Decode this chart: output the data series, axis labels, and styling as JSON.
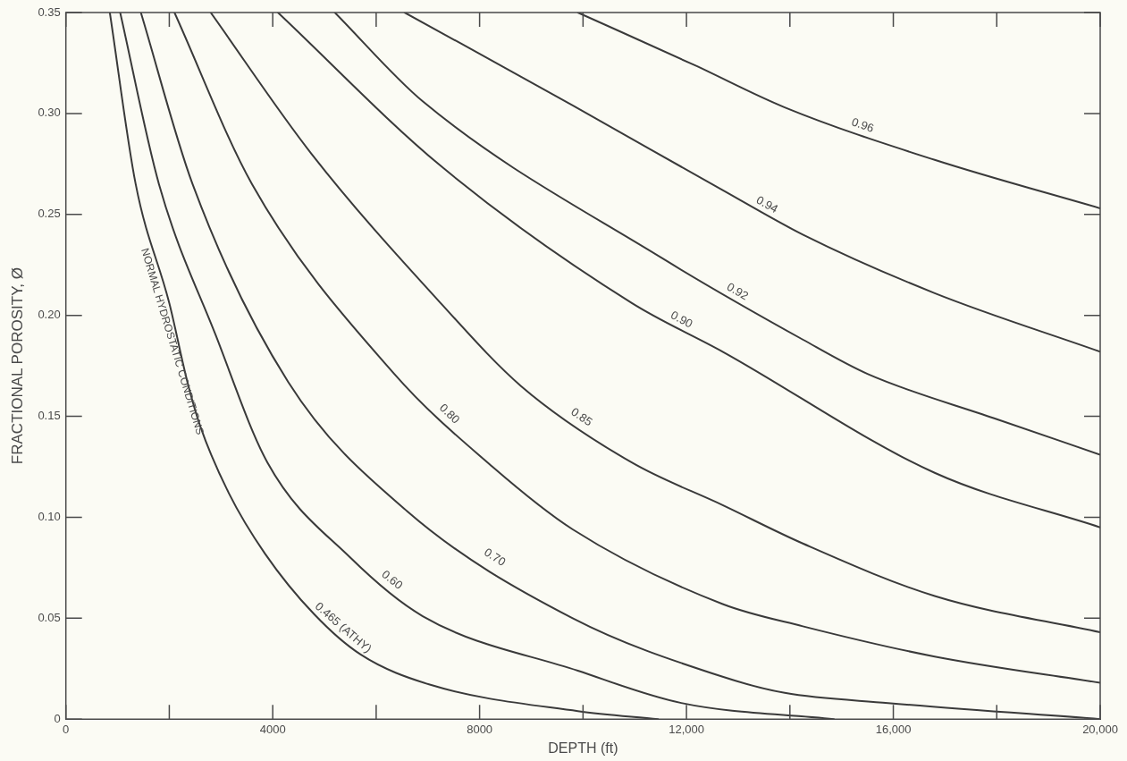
{
  "chart_data": {
    "type": "line",
    "xlabel": "DEPTH (ft)",
    "ylabel": "FRACTIONAL POROSITY, Ø",
    "xlim": [
      0,
      20000
    ],
    "ylim": [
      0,
      0.35
    ],
    "xticks": [
      0,
      {
        "value": 2000,
        "label": null
      },
      4000,
      {
        "value": 6000,
        "label": null
      },
      8000,
      {
        "value": 10000,
        "label": null
      },
      {
        "value": 12000,
        "label": "12,000"
      },
      {
        "value": 14000,
        "label": null
      },
      {
        "value": 16000,
        "label": "16,000"
      },
      {
        "value": 18000,
        "label": null
      },
      {
        "value": 20000,
        "label": "20,000"
      }
    ],
    "yticks": [
      0,
      {
        "value": 0.05,
        "label": "0.05"
      },
      {
        "value": 0.1,
        "label": "0.10"
      },
      {
        "value": 0.15,
        "label": "0.15"
      },
      {
        "value": 0.2,
        "label": "0.20"
      },
      {
        "value": 0.25,
        "label": "0.25"
      },
      {
        "value": 0.3,
        "label": "0.30"
      },
      {
        "value": 0.35,
        "label": "0.35"
      }
    ],
    "grid": false,
    "legend": false,
    "marker": "none",
    "line_style": "solid",
    "annotations": [
      "NORMAL HYDROSTATIC CONDITIONS"
    ],
    "series": [
      {
        "name": "0.465 (ATHY)",
        "color": "#3a3a3a",
        "x": [
          850,
          1350,
          2000,
          2350,
          2600,
          3150,
          3850,
          4800,
          5700,
          7050,
          9900,
          11450
        ],
        "values": [
          0.35,
          0.265,
          0.206,
          0.167,
          0.145,
          0.112,
          0.082,
          0.052,
          0.032,
          0.017,
          0.004,
          0
        ]
      },
      {
        "name": "0.60",
        "color": "#3a3a3a",
        "x": [
          1050,
          1800,
          2900,
          3900,
          5500,
          6900,
          9900,
          11900,
          14850
        ],
        "values": [
          0.35,
          0.265,
          0.19,
          0.127,
          0.08,
          0.051,
          0.024,
          0.008,
          0
        ]
      },
      {
        "name": "0.70",
        "color": "#3a3a3a",
        "x": [
          1450,
          2450,
          4300,
          6600,
          9800,
          12700,
          13900,
          15900,
          20000
        ],
        "values": [
          0.35,
          0.265,
          0.167,
          0.103,
          0.05,
          0.021,
          0.013,
          0.008,
          0
        ]
      },
      {
        "name": "0.80",
        "color": "#3a3a3a",
        "x": [
          2100,
          3600,
          6350,
          8250,
          9800,
          12700,
          14250,
          16800,
          20000
        ],
        "values": [
          0.35,
          0.265,
          0.171,
          0.125,
          0.094,
          0.057,
          0.046,
          0.031,
          0.018
        ]
      },
      {
        "name": "0.85",
        "color": "#3a3a3a",
        "x": [
          2800,
          4750,
          7250,
          8800,
          10950,
          12700,
          14250,
          16800,
          20000
        ],
        "values": [
          0.35,
          0.28,
          0.206,
          0.165,
          0.127,
          0.106,
          0.087,
          0.061,
          0.043
        ]
      },
      {
        "name": "0.90",
        "color": "#3a3a3a",
        "x": [
          4100,
          7250,
          10950,
          12700,
          16800,
          20000
        ],
        "values": [
          0.35,
          0.274,
          0.206,
          0.182,
          0.122,
          0.095
        ]
      },
      {
        "name": "0.92",
        "color": "#3a3a3a",
        "x": [
          5200,
          6900,
          11550,
          14250,
          15500,
          17950,
          20000
        ],
        "values": [
          0.35,
          0.306,
          0.228,
          0.188,
          0.171,
          0.149,
          0.131
        ]
      },
      {
        "name": "0.94",
        "color": "#3a3a3a",
        "x": [
          6550,
          9800,
          12700,
          14250,
          16800,
          20000
        ],
        "values": [
          0.35,
          0.304,
          0.262,
          0.24,
          0.211,
          0.182
        ]
      },
      {
        "name": "0.96",
        "color": "#3a3a3a",
        "x": [
          9900,
          12150,
          13900,
          16800,
          20000
        ],
        "values": [
          0.35,
          0.324,
          0.303,
          0.277,
          0.253
        ]
      }
    ]
  }
}
